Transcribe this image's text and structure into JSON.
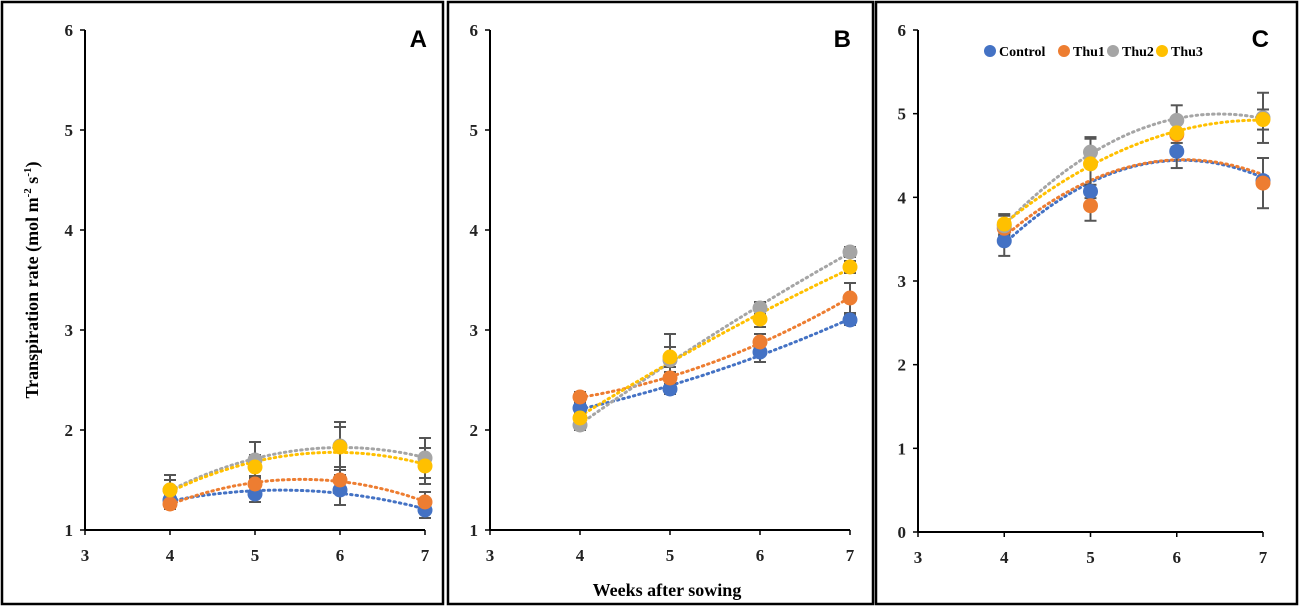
{
  "figure": {
    "ylabel_main": "Transpiration rate (mol m",
    "ylabel_sup1": "-2",
    "ylabel_mid": " s",
    "ylabel_sup2": "-1",
    "ylabel_end": ")",
    "xlabel": "Weeks after sowing"
  },
  "chart_data": [
    {
      "type": "scatter",
      "panel": "A",
      "xlim": [
        3,
        7
      ],
      "ylim": [
        1,
        6
      ],
      "xticks": [
        3,
        4,
        5,
        6,
        7
      ],
      "yticks": [
        1,
        2,
        3,
        4,
        5,
        6
      ],
      "x": [
        4,
        5,
        6,
        7
      ],
      "series": [
        {
          "name": "Control",
          "color": "#4472c4",
          "values": [
            1.3,
            1.36,
            1.4,
            1.2
          ],
          "errors": [
            0.05,
            0.08,
            0.15,
            0.08
          ]
        },
        {
          "name": "Thu1",
          "color": "#ed7d31",
          "values": [
            1.26,
            1.46,
            1.5,
            1.28
          ],
          "errors": [
            0.05,
            0.08,
            0.1,
            0.1
          ]
        },
        {
          "name": "Thu2",
          "color": "#a5a5a5",
          "values": [
            1.4,
            1.7,
            1.84,
            1.72
          ],
          "errors": [
            0.15,
            0.18,
            0.24,
            0.2
          ]
        },
        {
          "name": "Thu3",
          "color": "#ffc000",
          "values": [
            1.4,
            1.63,
            1.83,
            1.64
          ],
          "errors": [
            0.1,
            0.12,
            0.2,
            0.18
          ]
        }
      ]
    },
    {
      "type": "scatter",
      "panel": "B",
      "xlim": [
        3,
        7
      ],
      "ylim": [
        1,
        6
      ],
      "xticks": [
        3,
        4,
        5,
        6,
        7
      ],
      "yticks": [
        1,
        2,
        3,
        4,
        5,
        6
      ],
      "x": [
        4,
        5,
        6,
        7
      ],
      "series": [
        {
          "name": "Control",
          "color": "#4472c4",
          "values": [
            2.22,
            2.41,
            2.78,
            3.1
          ],
          "errors": [
            0.05,
            0.05,
            0.1,
            0.05
          ]
        },
        {
          "name": "Thu1",
          "color": "#ed7d31",
          "values": [
            2.33,
            2.52,
            2.88,
            3.32
          ],
          "errors": [
            0.05,
            0.06,
            0.08,
            0.15
          ]
        },
        {
          "name": "Thu2",
          "color": "#a5a5a5",
          "values": [
            2.05,
            2.7,
            3.22,
            3.78
          ],
          "errors": [
            0.05,
            0.26,
            0.06,
            0.05
          ]
        },
        {
          "name": "Thu3",
          "color": "#ffc000",
          "values": [
            2.12,
            2.73,
            3.11,
            3.63
          ],
          "errors": [
            0.05,
            0.1,
            0.08,
            0.06
          ]
        }
      ]
    },
    {
      "type": "scatter",
      "panel": "C",
      "xlim": [
        3,
        7
      ],
      "ylim": [
        0,
        6
      ],
      "xticks": [
        3,
        4,
        5,
        6,
        7
      ],
      "yticks": [
        0,
        1,
        2,
        3,
        4,
        5,
        6
      ],
      "x": [
        4,
        5,
        6,
        7
      ],
      "legend": "top",
      "series": [
        {
          "name": "Control",
          "color": "#4472c4",
          "values": [
            3.48,
            4.07,
            4.55,
            4.2
          ],
          "errors": [
            0.18,
            0.08,
            0.2,
            0.05
          ]
        },
        {
          "name": "Thu1",
          "color": "#ed7d31",
          "values": [
            3.63,
            3.9,
            4.75,
            4.17
          ],
          "errors": [
            0.08,
            0.18,
            0.15,
            0.3
          ]
        },
        {
          "name": "Thu2",
          "color": "#a5a5a5",
          "values": [
            3.66,
            4.54,
            4.92,
            4.95
          ],
          "errors": [
            0.12,
            0.18,
            0.18,
            0.3
          ]
        },
        {
          "name": "Thu3",
          "color": "#ffc000",
          "values": [
            3.68,
            4.4,
            4.77,
            4.93
          ],
          "errors": [
            0.12,
            0.3,
            0.12,
            0.12
          ]
        }
      ]
    }
  ]
}
